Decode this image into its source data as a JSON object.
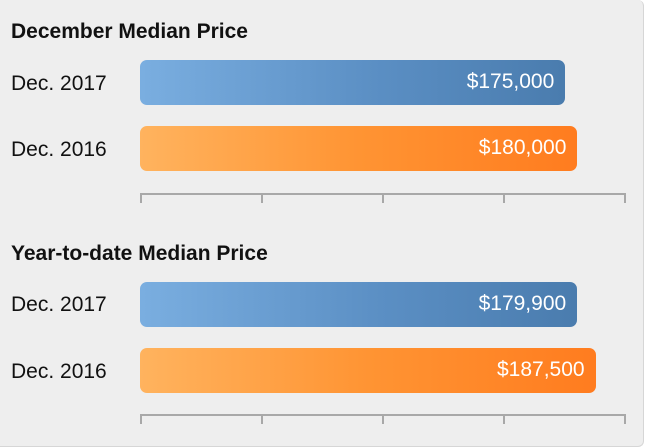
{
  "chart_data": [
    {
      "type": "bar",
      "title": "December Median Price",
      "categories": [
        "Dec. 2017",
        "Dec. 2016"
      ],
      "values": [
        175000,
        180000
      ],
      "value_labels": [
        "$175,000",
        "$180,000"
      ],
      "colors": [
        "#5b8fc4",
        "#ff9433"
      ],
      "xlim": [
        0,
        200000
      ],
      "grid": false,
      "orientation": "horizontal"
    },
    {
      "type": "bar",
      "title": "Year-to-date Median Price",
      "categories": [
        "Dec. 2017",
        "Dec. 2016"
      ],
      "values": [
        179900,
        187500
      ],
      "value_labels": [
        "$179,900",
        "$187,500"
      ],
      "colors": [
        "#5b8fc4",
        "#ff9433"
      ],
      "xlim": [
        0,
        200000
      ],
      "grid": false,
      "orientation": "horizontal"
    }
  ]
}
